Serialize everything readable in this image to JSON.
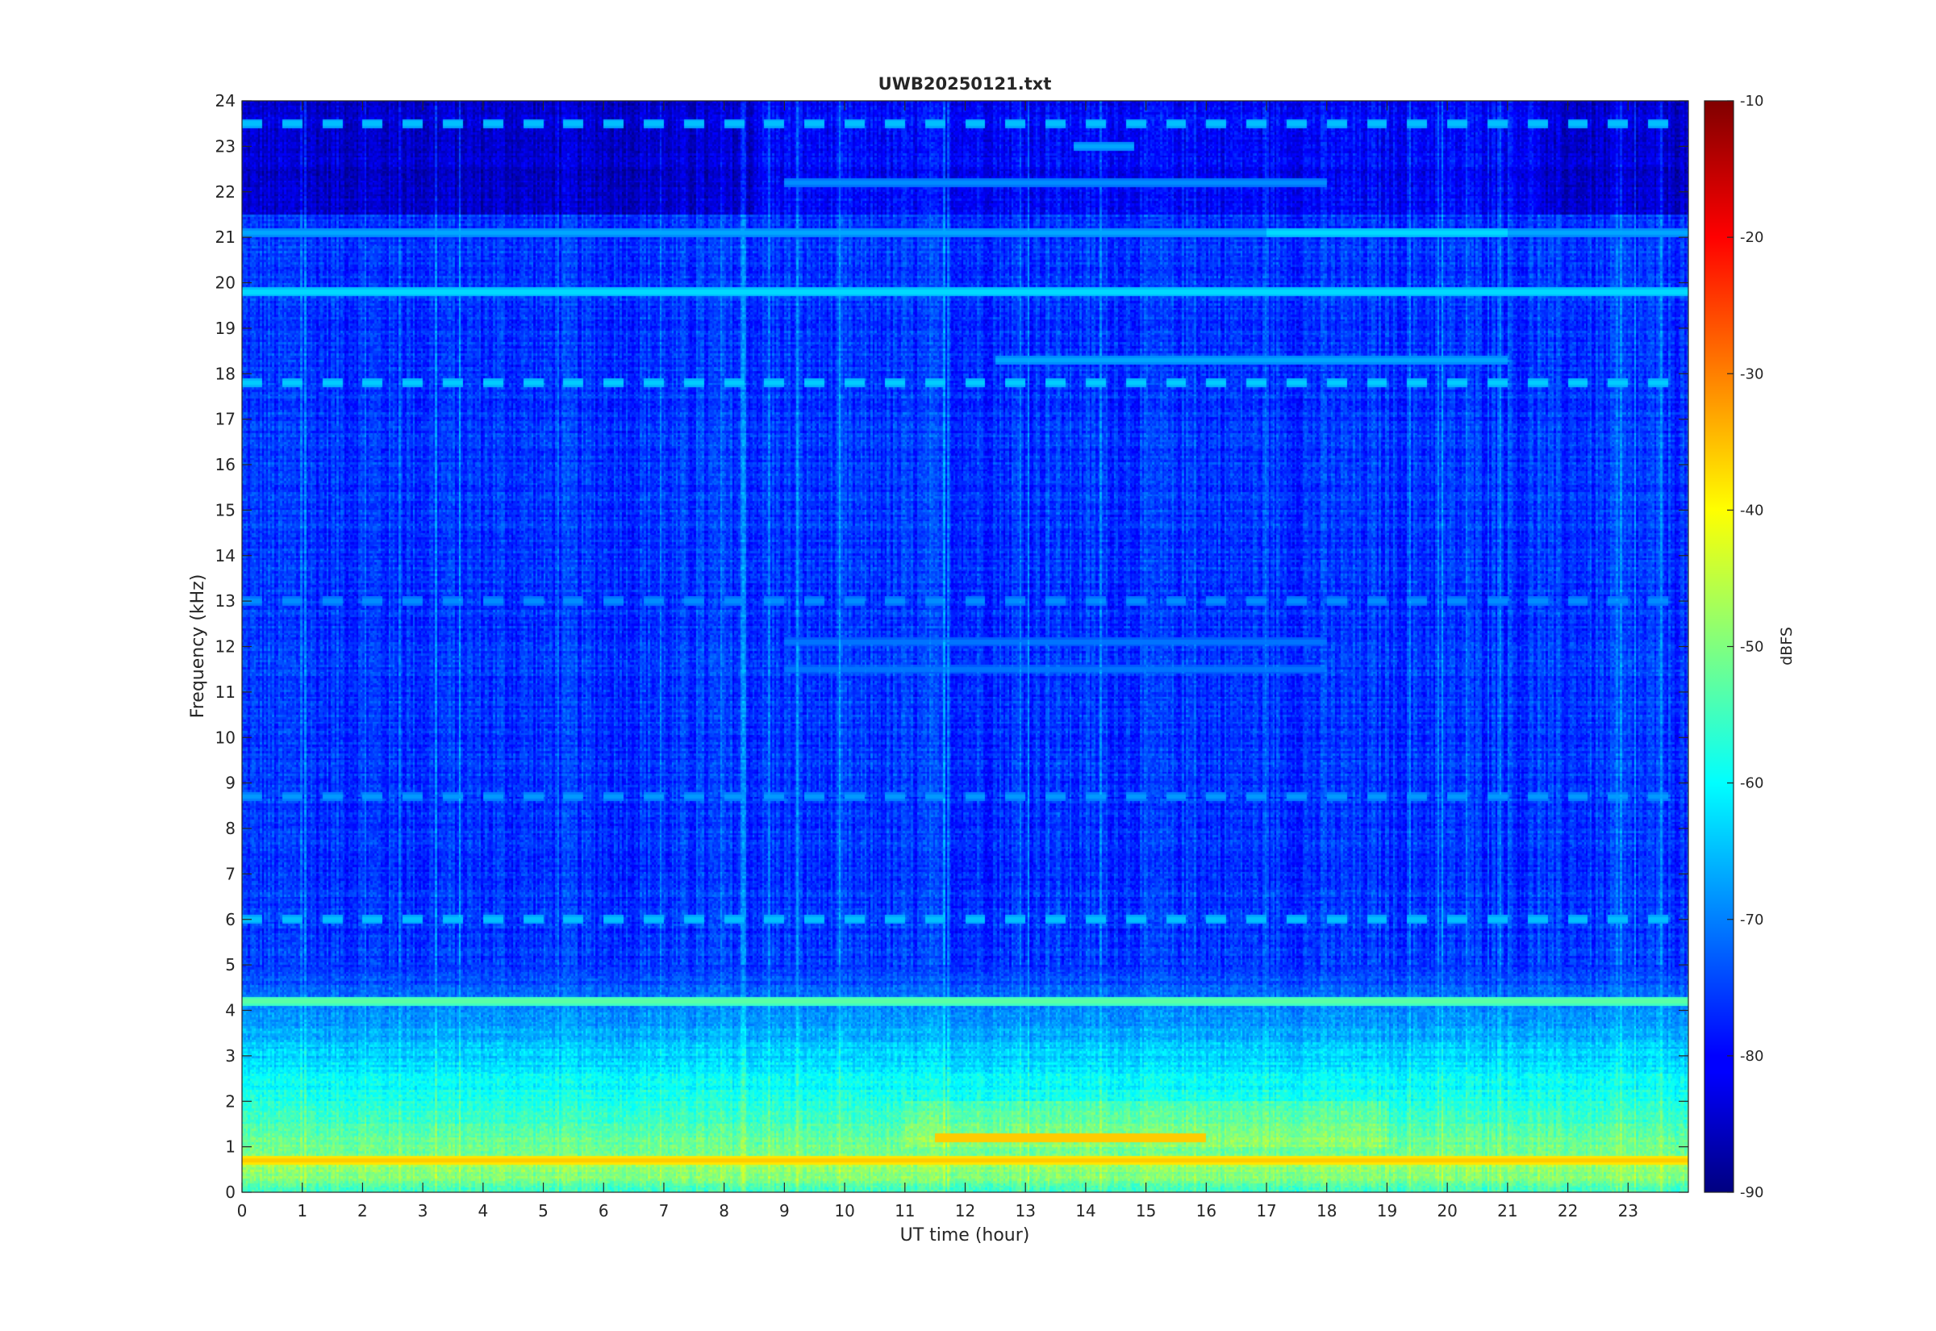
{
  "chart_data": {
    "type": "heatmap",
    "title": "UWB20250121.txt",
    "xlabel": "UT time (hour)",
    "ylabel": "Frequency (kHz)",
    "xlim": [
      0,
      24
    ],
    "ylim": [
      0,
      24
    ],
    "x_ticks": [
      0,
      1,
      2,
      3,
      4,
      5,
      6,
      7,
      8,
      9,
      10,
      11,
      12,
      13,
      14,
      15,
      16,
      17,
      18,
      19,
      20,
      21,
      22,
      23
    ],
    "y_ticks": [
      0,
      1,
      2,
      3,
      4,
      5,
      6,
      7,
      8,
      9,
      10,
      11,
      12,
      13,
      14,
      15,
      16,
      17,
      18,
      19,
      20,
      21,
      22,
      23,
      24
    ],
    "colorbar": {
      "label": "dBFS",
      "range": [
        -90,
        -10
      ],
      "ticks": [
        -10,
        -20,
        -30,
        -40,
        -50,
        -60,
        -70,
        -80,
        -90
      ],
      "colormap": "jet"
    },
    "background_level_db": -76,
    "tone_lines_khz_db": [
      {
        "freq": 19.8,
        "db": -62,
        "t0": 0,
        "t1": 24
      },
      {
        "freq": 18.3,
        "db": -66,
        "t0": 12.5,
        "t1": 21
      },
      {
        "freq": 17.8,
        "db": -63,
        "t0": 0,
        "t1": 24,
        "dashed": true
      },
      {
        "freq": 21.1,
        "db": -66,
        "t0": 0,
        "t1": 24
      },
      {
        "freq": 21.1,
        "db": -62,
        "t0": 17,
        "t1": 21
      },
      {
        "freq": 22.2,
        "db": -68,
        "t0": 9,
        "t1": 18
      },
      {
        "freq": 23.5,
        "db": -64,
        "t0": 0,
        "t1": 24,
        "dashed": true
      },
      {
        "freq": 23.0,
        "db": -66,
        "t0": 13.8,
        "t1": 14.8
      },
      {
        "freq": 13.0,
        "db": -68,
        "t0": 0,
        "t1": 24,
        "dashed": true
      },
      {
        "freq": 12.1,
        "db": -70,
        "t0": 9,
        "t1": 18
      },
      {
        "freq": 11.5,
        "db": -70,
        "t0": 9,
        "t1": 18
      },
      {
        "freq": 8.7,
        "db": -67,
        "t0": 0,
        "t1": 24,
        "dashed": true
      },
      {
        "freq": 6.0,
        "db": -64,
        "t0": 0,
        "t1": 24,
        "dashed": true
      },
      {
        "freq": 4.2,
        "db": -52,
        "t0": 0,
        "t1": 24
      },
      {
        "freq": 0.7,
        "db": -35,
        "t0": 0,
        "t1": 24
      }
    ],
    "broadband_energy_khz": [
      0,
      5
    ],
    "strong_band": {
      "freq": 1.2,
      "db": -36,
      "t0": 11.5,
      "t1": 16
    }
  }
}
